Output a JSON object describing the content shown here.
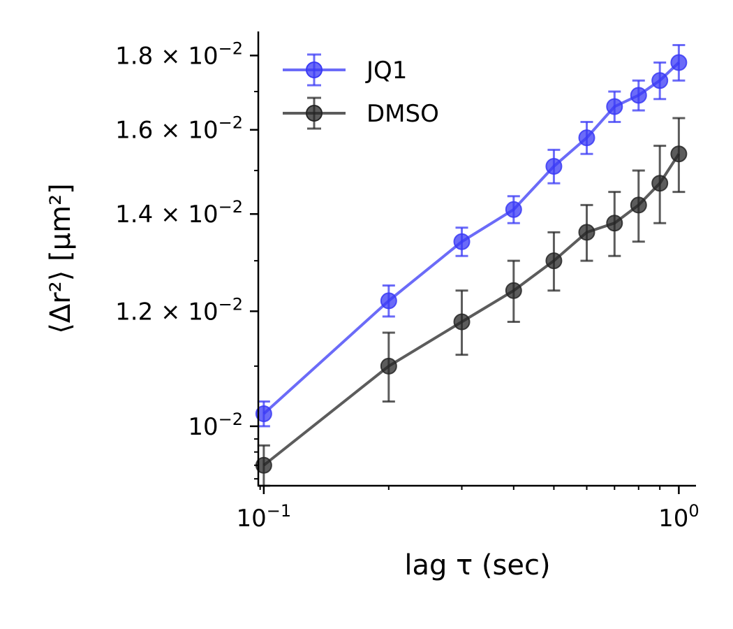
{
  "chart_data": {
    "type": "line",
    "xlabel": "lag τ (sec)",
    "ylabel": "⟨Δr²⟩ [μm²]",
    "xscale": "log",
    "yscale": "log",
    "xlim": [
      0.097,
      1.1
    ],
    "ylim": [
      0.0091,
      0.0187
    ],
    "x": [
      0.1,
      0.2,
      0.3,
      0.4,
      0.5,
      0.6,
      0.7,
      0.8,
      0.9,
      1.0
    ],
    "x_ticks": [
      {
        "value": 0.1,
        "base": "10",
        "exp": "−1"
      },
      {
        "value": 1.0,
        "base": "10",
        "exp": "0"
      }
    ],
    "y_ticks": [
      {
        "value": 0.01,
        "mant": "",
        "base": "10",
        "exp": "−2"
      },
      {
        "value": 0.012,
        "mant": "1.2 × ",
        "base": "10",
        "exp": "−2"
      },
      {
        "value": 0.014,
        "mant": "1.4 × ",
        "base": "10",
        "exp": "−2"
      },
      {
        "value": 0.016,
        "mant": "1.6 × ",
        "base": "10",
        "exp": "−2"
      },
      {
        "value": 0.018,
        "mant": "1.8 × ",
        "base": "10",
        "exp": "−2"
      }
    ],
    "series": [
      {
        "name": "JQ1",
        "color": "#3a3af5",
        "values": [
          0.0102,
          0.0122,
          0.0134,
          0.0141,
          0.0151,
          0.0158,
          0.0166,
          0.0169,
          0.0173,
          0.0178
        ],
        "errors": [
          0.0002,
          0.0003,
          0.0003,
          0.0003,
          0.0004,
          0.0004,
          0.0004,
          0.0004,
          0.0005,
          0.0005
        ]
      },
      {
        "name": "DMSO",
        "color": "#262626",
        "values": [
          0.0094,
          0.011,
          0.0118,
          0.0124,
          0.013,
          0.0136,
          0.0138,
          0.0142,
          0.0147,
          0.0154
        ],
        "errors": [
          0.0003,
          0.0006,
          0.0006,
          0.0006,
          0.0006,
          0.0006,
          0.0007,
          0.0008,
          0.0009,
          0.0009
        ]
      }
    ],
    "grid": false,
    "legend_position": "top-left"
  }
}
